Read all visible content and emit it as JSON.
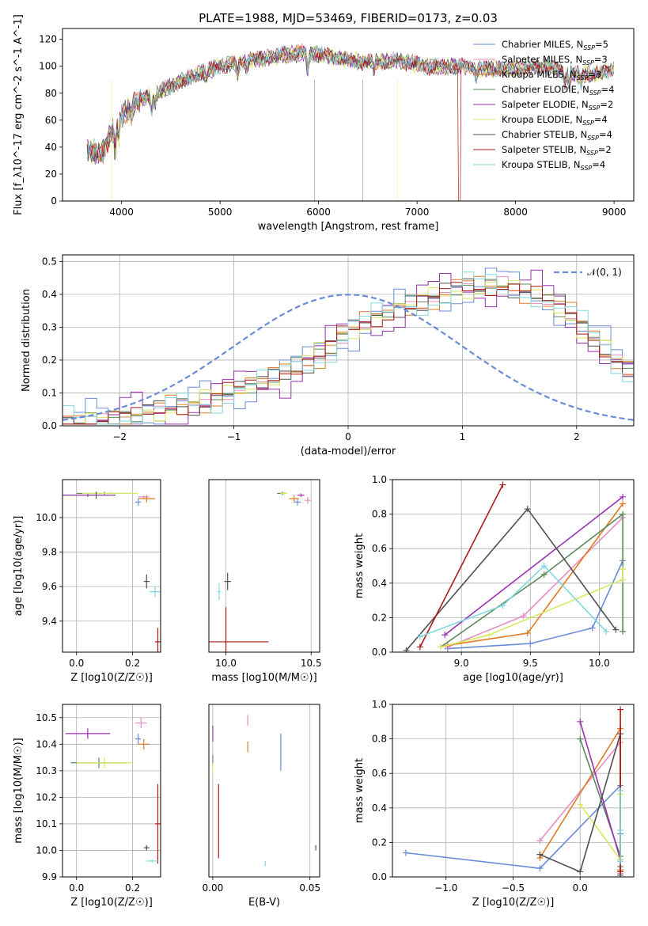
{
  "colors": {
    "chabrier_miles": "#6a8bd8",
    "salpeter_miles": "#e68cc4",
    "kroupa_miles": "#e07b20",
    "chabrier_elodie": "#5a8a5a",
    "salpeter_elodie": "#9a30b0",
    "kroupa_elodie": "#d8e860",
    "chabrier_stelib": "#505050",
    "salpeter_stelib": "#b01818",
    "kroupa_stelib": "#80d8e0",
    "gauss": "#6a8bd8"
  },
  "chart_data": [
    {
      "type": "line",
      "title": "PLATE=1988, MJD=53469, FIBERID=0173, z=0.03",
      "xlabel": "wavelength [Angstrom, rest frame]",
      "ylabel": "Flux [f_λ10^-17 erg cm^-2 s^-1 A^-1]",
      "xlim": [
        3400,
        9200
      ],
      "ylim": [
        0,
        128
      ],
      "xticks": [
        "4000",
        "5000",
        "6000",
        "7000",
        "8000",
        "9000"
      ],
      "yticks": [
        "0",
        "20",
        "40",
        "60",
        "80",
        "100",
        "120"
      ],
      "legend": "top-right",
      "continuum": {
        "x": [
          3650,
          3800,
          3900,
          4000,
          4100,
          4300,
          4500,
          4700,
          5000,
          5300,
          5600,
          5900,
          6200,
          6500,
          6800,
          7100,
          7400,
          7700,
          8000,
          8300,
          8600,
          8800,
          9000
        ],
        "y": [
          38,
          35,
          52,
          62,
          72,
          78,
          85,
          92,
          100,
          104,
          108,
          110,
          106,
          103,
          104,
          100,
          100,
          98,
          98,
          100,
          94,
          94,
          98
        ]
      },
      "series": [
        {
          "name": "Chabrier MILES, N_SSP=5",
          "label_main": "Chabrier MILES, N",
          "label_sub": "SSP",
          "label_end": "=5"
        },
        {
          "name": "Salpeter MILES, N_SSP=3",
          "label_main": "Salpeter MILES, N",
          "label_sub": "SSP",
          "label_end": "=3"
        },
        {
          "name": "Kroupa MILES, N_SSP=3",
          "label_main": "Kroupa MILES, N",
          "label_sub": "SSP",
          "label_end": "=3"
        },
        {
          "name": "Chabrier ELODIE, N_SSP=4",
          "label_main": "Chabrier ELODIE, N",
          "label_sub": "SSP",
          "label_end": "=4"
        },
        {
          "name": "Salpeter ELODIE, N_SSP=2",
          "label_main": "Salpeter ELODIE, N",
          "label_sub": "SSP",
          "label_end": "=2"
        },
        {
          "name": "Kroupa ELODIE, N_SSP=4",
          "label_main": "Kroupa ELODIE, N",
          "label_sub": "SSP",
          "label_end": "=4"
        },
        {
          "name": "Chabrier STELIB, N_SSP=4",
          "label_main": "Chabrier STELIB, N",
          "label_sub": "SSP",
          "label_end": "=4"
        },
        {
          "name": "Salpeter STELIB, N_SSP=2",
          "label_main": "Salpeter STELIB, N",
          "label_sub": "SSP",
          "label_end": "=2"
        },
        {
          "name": "Kroupa STELIB, N_SSP=4",
          "label_main": "Kroupa STELIB, N",
          "label_sub": "SSP",
          "label_end": "=4"
        }
      ]
    },
    {
      "type": "step",
      "xlabel": "(data-model)/error",
      "ylabel": "Normed distribution",
      "xlim": [
        -2.5,
        2.5
      ],
      "ylim": [
        0,
        0.52
      ],
      "xticks": [
        "-2",
        "-1",
        "0",
        "1",
        "2"
      ],
      "yticks": [
        "0.0",
        "0.1",
        "0.2",
        "0.3",
        "0.4",
        "0.5"
      ],
      "bin_start": -2.5,
      "bin_width": 0.1,
      "gauss_label": "𝒩(0, 1)",
      "base_hist": [
        0.01,
        0.01,
        0.02,
        0.02,
        0.02,
        0.03,
        0.03,
        0.04,
        0.04,
        0.05,
        0.06,
        0.07,
        0.08,
        0.09,
        0.1,
        0.11,
        0.12,
        0.13,
        0.15,
        0.16,
        0.18,
        0.2,
        0.22,
        0.24,
        0.27,
        0.29,
        0.31,
        0.33,
        0.34,
        0.36,
        0.37,
        0.38,
        0.39,
        0.4,
        0.41,
        0.42,
        0.42,
        0.43,
        0.43,
        0.42,
        0.41,
        0.4,
        0.38,
        0.36,
        0.33,
        0.3,
        0.27,
        0.24,
        0.2,
        0.17
      ]
    },
    {
      "type": "errorbar",
      "xlabel": "Z [log10(Z/Z☉)]",
      "ylabel": "age  [log10(age/yr)]",
      "xlim": [
        -0.05,
        0.3
      ],
      "ylim": [
        9.22,
        10.22
      ],
      "xticks": [
        "0.0",
        "0.2"
      ],
      "yticks": [
        "9.4",
        "9.6",
        "9.8",
        "10.0"
      ],
      "points": [
        {
          "c": "chabrier_miles",
          "x": 0.22,
          "y": 10.09,
          "xe": 0.01,
          "ye": 0.02
        },
        {
          "c": "salpeter_miles",
          "x": 0.24,
          "y": 10.12,
          "xe": 0.02,
          "ye": 0.01
        },
        {
          "c": "kroupa_miles",
          "x": 0.25,
          "y": 10.11,
          "xe": 0.03,
          "ye": 0.02
        },
        {
          "c": "chabrier_elodie",
          "x": 0.1,
          "y": 10.14,
          "xe": 0.1,
          "ye": 0.01
        },
        {
          "c": "salpeter_elodie",
          "x": 0.04,
          "y": 10.13,
          "xe": 0.1,
          "ye": 0.01
        },
        {
          "c": "kroupa_elodie",
          "x": 0.12,
          "y": 10.14,
          "xe": 0.1,
          "ye": 0.01
        },
        {
          "c": "chabrier_stelib",
          "x": 0.25,
          "y": 9.63,
          "xe": 0.01,
          "ye": 0.04
        },
        {
          "c": "salpeter_stelib",
          "x": 0.29,
          "y": 9.28,
          "xe": 0.01,
          "ye": 0.08
        },
        {
          "c": "kroupa_stelib",
          "x": 0.28,
          "y": 9.57,
          "xe": 0.02,
          "ye": 0.03
        },
        {
          "c": "chabrier_stelib",
          "x": 0.07,
          "y": 10.13,
          "xe": 0.0,
          "ye": 0.02
        }
      ]
    },
    {
      "type": "errorbar",
      "xlabel": "mass [log10(M/M☉)]",
      "xlim": [
        9.9,
        10.55
      ],
      "ylim": [
        9.22,
        10.22
      ],
      "xticks": [
        "10.0",
        "10.5"
      ],
      "points": [
        {
          "c": "chabrier_miles",
          "x": 10.42,
          "y": 10.09,
          "xe": 0.02,
          "ye": 0.02
        },
        {
          "c": "salpeter_miles",
          "x": 10.48,
          "y": 10.1,
          "xe": 0.02,
          "ye": 0.02
        },
        {
          "c": "kroupa_miles",
          "x": 10.4,
          "y": 10.11,
          "xe": 0.03,
          "ye": 0.02
        },
        {
          "c": "chabrier_elodie",
          "x": 10.33,
          "y": 10.14,
          "xe": 0.03,
          "ye": 0.01
        },
        {
          "c": "salpeter_elodie",
          "x": 10.44,
          "y": 10.13,
          "xe": 0.02,
          "ye": 0.01
        },
        {
          "c": "kroupa_elodie",
          "x": 10.34,
          "y": 10.14,
          "xe": 0.02,
          "ye": 0.01
        },
        {
          "c": "chabrier_stelib",
          "x": 10.01,
          "y": 9.63,
          "xe": 0.02,
          "ye": 0.05
        },
        {
          "c": "salpeter_stelib",
          "x": 10.0,
          "y": 9.28,
          "xe": 0.25,
          "ye": 0.2
        },
        {
          "c": "kroupa_stelib",
          "x": 9.96,
          "y": 9.57,
          "xe": 0.01,
          "ye": 0.05
        }
      ]
    },
    {
      "type": "line",
      "xlabel": "age  [log10(age/yr)]",
      "ylabel": "mass weight",
      "xlim": [
        8.5,
        10.25
      ],
      "ylim": [
        0,
        1.0
      ],
      "xticks": [
        "9.0",
        "9.5",
        "10.0"
      ],
      "yticks": [
        "0.0",
        "0.2",
        "0.4",
        "0.6",
        "0.8",
        "1.0"
      ],
      "series": [
        {
          "c": "chabrier_miles",
          "x": [
            8.9,
            9.5,
            9.95,
            10.17
          ],
          "y": [
            0.02,
            0.05,
            0.14,
            0.53
          ]
        },
        {
          "c": "salpeter_miles",
          "x": [
            8.9,
            9.45,
            10.17
          ],
          "y": [
            0.03,
            0.21,
            0.78
          ]
        },
        {
          "c": "kroupa_miles",
          "x": [
            8.9,
            9.48,
            10.17
          ],
          "y": [
            0.04,
            0.11,
            0.86
          ]
        },
        {
          "c": "chabrier_elodie",
          "x": [
            8.85,
            9.6,
            10.17,
            10.17
          ],
          "y": [
            0.03,
            0.45,
            0.8,
            0.12
          ]
        },
        {
          "c": "salpeter_elodie",
          "x": [
            8.88,
            10.17
          ],
          "y": [
            0.1,
            0.9
          ]
        },
        {
          "c": "kroupa_elodie",
          "x": [
            8.85,
            9.2,
            10.17,
            10.17
          ],
          "y": [
            0.03,
            0.1,
            0.42,
            0.48
          ]
        },
        {
          "c": "chabrier_stelib",
          "x": [
            8.6,
            9.48,
            10.12
          ],
          "y": [
            0.01,
            0.83,
            0.13
          ]
        },
        {
          "c": "salpeter_stelib",
          "x": [
            8.7,
            9.3
          ],
          "y": [
            0.03,
            0.97
          ]
        },
        {
          "c": "kroupa_stelib",
          "x": [
            8.7,
            9.3,
            9.6,
            10.05
          ],
          "y": [
            0.09,
            0.27,
            0.5,
            0.12
          ]
        }
      ]
    },
    {
      "type": "errorbar",
      "xlabel": "Z [log10(Z/Z☉)]",
      "ylabel": "mass [log10(M/M☉)]",
      "xlim": [
        -0.05,
        0.3
      ],
      "ylim": [
        9.9,
        10.55
      ],
      "xticks": [
        "0.0",
        "0.2"
      ],
      "yticks": [
        "9.9",
        "10.0",
        "10.1",
        "10.2",
        "10.3",
        "10.4",
        "10.5"
      ],
      "points": [
        {
          "c": "chabrier_miles",
          "x": 0.22,
          "y": 10.42,
          "xe": 0.01,
          "ye": 0.02
        },
        {
          "c": "salpeter_miles",
          "x": 0.23,
          "y": 10.48,
          "xe": 0.02,
          "ye": 0.02
        },
        {
          "c": "kroupa_miles",
          "x": 0.24,
          "y": 10.4,
          "xe": 0.02,
          "ye": 0.02
        },
        {
          "c": "chabrier_elodie",
          "x": 0.08,
          "y": 10.33,
          "xe": 0.1,
          "ye": 0.02
        },
        {
          "c": "salpeter_elodie",
          "x": 0.04,
          "y": 10.44,
          "xe": 0.08,
          "ye": 0.02
        },
        {
          "c": "kroupa_elodie",
          "x": 0.1,
          "y": 10.33,
          "xe": 0.1,
          "ye": 0.02
        },
        {
          "c": "chabrier_stelib",
          "x": 0.25,
          "y": 10.01,
          "xe": 0.01,
          "ye": 0.01
        },
        {
          "c": "salpeter_stelib",
          "x": 0.29,
          "y": 10.1,
          "xe": 0.01,
          "ye": 0.15
        },
        {
          "c": "kroupa_stelib",
          "x": 0.27,
          "y": 9.96,
          "xe": 0.02,
          "ye": 0.005
        }
      ]
    },
    {
      "type": "errorbar",
      "xlabel": "E(B-V)",
      "xlim": [
        -0.002,
        0.055
      ],
      "ylim": [
        9.9,
        10.55
      ],
      "xticks": [
        "0.00",
        "0.05"
      ],
      "points": [
        {
          "c": "chabrier_miles",
          "x": 0.035,
          "y": 10.37,
          "xe": 0,
          "ye": 0.07
        },
        {
          "c": "salpeter_miles",
          "x": 0.018,
          "y": 10.49,
          "xe": 0,
          "ye": 0.02
        },
        {
          "c": "kroupa_miles",
          "x": 0.018,
          "y": 10.39,
          "xe": 0,
          "ye": 0.02
        },
        {
          "c": "chabrier_elodie",
          "x": 0.0,
          "y": 10.34,
          "xe": 0,
          "ye": 0.02
        },
        {
          "c": "salpeter_elodie",
          "x": 0.0,
          "y": 10.44,
          "xe": 0,
          "ye": 0.03
        },
        {
          "c": "kroupa_elodie",
          "x": 0.0,
          "y": 10.31,
          "xe": 0,
          "ye": 0.02
        },
        {
          "c": "chabrier_stelib",
          "x": 0.053,
          "y": 10.01,
          "xe": 0,
          "ye": 0.01
        },
        {
          "c": "salpeter_stelib",
          "x": 0.003,
          "y": 10.11,
          "xe": 0,
          "ye": 0.14
        },
        {
          "c": "kroupa_stelib",
          "x": 0.027,
          "y": 9.95,
          "xe": 0,
          "ye": 0.01
        }
      ]
    },
    {
      "type": "line",
      "xlabel": "Z [log10(Z/Z☉)]",
      "ylabel": "mass weight",
      "xlim": [
        -1.4,
        0.4
      ],
      "ylim": [
        0,
        1.0
      ],
      "xticks": [
        "-1.0",
        "-0.5",
        "0.0"
      ],
      "yticks": [
        "0.0",
        "0.2",
        "0.4",
        "0.6",
        "0.8",
        "1.0"
      ],
      "series": [
        {
          "c": "chabrier_miles",
          "x": [
            -1.3,
            -0.3,
            0.3,
            0.3
          ],
          "y": [
            0.14,
            0.05,
            0.53,
            0.25
          ]
        },
        {
          "c": "salpeter_miles",
          "x": [
            -0.3,
            0.3,
            0.3
          ],
          "y": [
            0.21,
            0.78,
            0.02
          ]
        },
        {
          "c": "kroupa_miles",
          "x": [
            -0.3,
            0.3,
            0.3
          ],
          "y": [
            0.11,
            0.86,
            0.04
          ]
        },
        {
          "c": "chabrier_elodie",
          "x": [
            0.0,
            0.3,
            0.3
          ],
          "y": [
            0.8,
            0.12,
            0.06
          ]
        },
        {
          "c": "salpeter_elodie",
          "x": [
            0.0,
            0.3
          ],
          "y": [
            0.9,
            0.1
          ]
        },
        {
          "c": "kroupa_elodie",
          "x": [
            0.0,
            0.3,
            0.3
          ],
          "y": [
            0.42,
            0.1,
            0.48
          ]
        },
        {
          "c": "chabrier_stelib",
          "x": [
            -0.3,
            0.0,
            0.3,
            0.3
          ],
          "y": [
            0.13,
            0.03,
            0.83,
            0.01
          ]
        },
        {
          "c": "salpeter_stelib",
          "x": [
            0.3,
            0.3
          ],
          "y": [
            0.97,
            0.03
          ]
        },
        {
          "c": "kroupa_stelib",
          "x": [
            0.3,
            0.3,
            0.3
          ],
          "y": [
            0.5,
            0.27,
            0.09
          ]
        }
      ]
    }
  ]
}
